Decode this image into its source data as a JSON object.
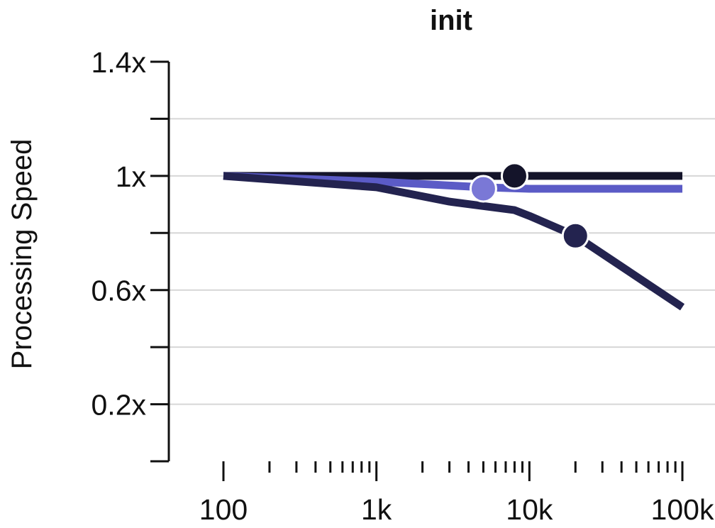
{
  "chart_data": {
    "type": "line",
    "title": "init",
    "xlabel": "",
    "ylabel": "Processing Speed",
    "x_scale": "log",
    "xlim": [
      100,
      100000
    ],
    "ylim": [
      0,
      1.4
    ],
    "grid": true,
    "y_ticks": [
      {
        "value": 0.2,
        "label": "0.2x"
      },
      {
        "value": 0.6,
        "label": "0.6x"
      },
      {
        "value": 1.0,
        "label": "1x"
      },
      {
        "value": 1.4,
        "label": "1.4x"
      }
    ],
    "y_gridlines": [
      0.2,
      0.4,
      0.6,
      0.8,
      1.0,
      1.2
    ],
    "x_ticks": [
      {
        "value": 100,
        "label": "100"
      },
      {
        "value": 1000,
        "label": "1k"
      },
      {
        "value": 10000,
        "label": "10k"
      },
      {
        "value": 100000,
        "label": "100k"
      }
    ],
    "series": [
      {
        "color": "#14142a",
        "x": [
          100,
          1000,
          10000,
          100000
        ],
        "y": [
          1.0,
          1.0,
          1.0,
          1.0
        ],
        "marker": {
          "x": 8000,
          "y": 1.0
        }
      },
      {
        "color": "#5b5bc6",
        "marker_color": "#7a78d6",
        "x": [
          100,
          1000,
          5000,
          10000,
          100000
        ],
        "y": [
          1.0,
          0.98,
          0.96,
          0.955,
          0.955
        ],
        "marker": {
          "x": 5000,
          "y": 0.955
        }
      },
      {
        "color": "#23234f",
        "x": [
          100,
          1000,
          3000,
          8000,
          10000,
          20000,
          100000
        ],
        "y": [
          1.0,
          0.96,
          0.91,
          0.88,
          0.86,
          0.79,
          0.54
        ],
        "marker": {
          "x": 20000,
          "y": 0.79
        }
      }
    ]
  }
}
